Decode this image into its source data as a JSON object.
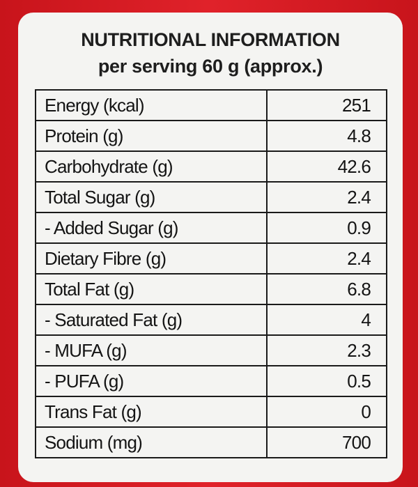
{
  "header": {
    "title": "NUTRITIONAL INFORMATION",
    "subtitle": "per serving 60 g (approx.)"
  },
  "table": {
    "rows": [
      [
        "Energy (kcal)",
        "251"
      ],
      [
        "Protein (g)",
        "4.8"
      ],
      [
        "Carbohydrate (g)",
        "42.6"
      ],
      [
        "Total Sugar (g)",
        "2.4"
      ],
      [
        "- Added Sugar (g)",
        "0.9"
      ],
      [
        "Dietary Fibre (g)",
        "2.4"
      ],
      [
        "Total Fat (g)",
        "6.8"
      ],
      [
        "- Saturated Fat (g)",
        "4"
      ],
      [
        "- MUFA (g)",
        "2.3"
      ],
      [
        "- PUFA (g)",
        "0.5"
      ],
      [
        "Trans Fat (g)",
        "0"
      ],
      [
        "Sodium (mg)",
        "700"
      ]
    ]
  }
}
